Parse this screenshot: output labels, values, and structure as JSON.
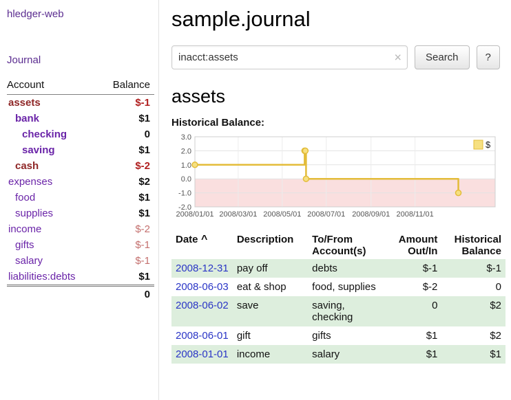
{
  "colors": {
    "link_purple": "#5b2d90",
    "account_purple": "#6a24a8",
    "maroon": "#8f2727",
    "negative": "#b01f1f",
    "negative_dim": "#c4706e",
    "date_blue": "#2a35c6",
    "row_green": "#ddeedd"
  },
  "app": {
    "brand": "hledger-web",
    "nav_journal": "Journal"
  },
  "sidebar": {
    "header": {
      "account": "Account",
      "balance": "Balance"
    },
    "accounts": [
      {
        "name": "assets",
        "indent": 0,
        "tone": "maroon",
        "bold": true,
        "balance": "$-1",
        "balance_tone": "num neg",
        "balance_bold": true
      },
      {
        "name": "bank",
        "indent": 1,
        "tone": "purple",
        "bold": true,
        "balance": "$1",
        "balance_tone": "num",
        "balance_bold": true
      },
      {
        "name": "checking",
        "indent": 2,
        "tone": "purple",
        "bold": true,
        "balance": "0",
        "balance_tone": "num",
        "balance_bold": true
      },
      {
        "name": "saving",
        "indent": 2,
        "tone": "purple",
        "bold": true,
        "balance": "$1",
        "balance_tone": "num",
        "balance_bold": true
      },
      {
        "name": "cash",
        "indent": 1,
        "tone": "maroon",
        "bold": true,
        "balance": "$-2",
        "balance_tone": "num neg",
        "balance_bold": true
      },
      {
        "name": "expenses",
        "indent": 0,
        "tone": "purple",
        "bold": false,
        "balance": "$2",
        "balance_tone": "num",
        "balance_bold": true
      },
      {
        "name": "food",
        "indent": 1,
        "tone": "purple",
        "bold": false,
        "balance": "$1",
        "balance_tone": "num",
        "balance_bold": true
      },
      {
        "name": "supplies",
        "indent": 1,
        "tone": "purple",
        "bold": false,
        "balance": "$1",
        "balance_tone": "num",
        "balance_bold": true
      },
      {
        "name": "income",
        "indent": 0,
        "tone": "purple",
        "bold": false,
        "balance": "$-2",
        "balance_tone": "num negdim",
        "balance_bold": false
      },
      {
        "name": "gifts",
        "indent": 1,
        "tone": "purple",
        "bold": false,
        "balance": "$-1",
        "balance_tone": "num negdim",
        "balance_bold": false
      },
      {
        "name": "salary",
        "indent": 1,
        "tone": "purple",
        "bold": false,
        "balance": "$-1",
        "balance_tone": "num negdim",
        "balance_bold": false
      },
      {
        "name": "liabilities:debts",
        "indent": 0,
        "tone": "purple",
        "bold": false,
        "balance": "$1",
        "balance_tone": "num",
        "balance_bold": true
      }
    ],
    "total": "0"
  },
  "main": {
    "title": "sample.journal",
    "search": {
      "value": "inacct:assets",
      "clear_icon": "×",
      "button": "Search",
      "help": "?"
    },
    "account_heading": "assets"
  },
  "chart_data": {
    "type": "line",
    "step": true,
    "title": "Historical Balance:",
    "ylim": [
      -2,
      3
    ],
    "yticks": [
      3,
      2,
      1,
      0,
      -1,
      -2
    ],
    "xlim": [
      "2008-01-01",
      "2009-02-20"
    ],
    "xticks": [
      "2008/01/01",
      "2008/03/01",
      "2008/05/01",
      "2008/07/01",
      "2008/09/01",
      "2008/11/01"
    ],
    "negative_region_color": "#fadfdf",
    "grid": true,
    "legend": {
      "label": "$",
      "position": "top-right"
    },
    "series": [
      {
        "name": "$",
        "color": "#e3bc39",
        "marker_fill": "#f6e081",
        "points": [
          [
            "2008-01-01",
            1
          ],
          [
            "2008-06-01",
            2
          ],
          [
            "2008-06-02",
            2
          ],
          [
            "2008-06-03",
            0
          ],
          [
            "2008-12-31",
            -1
          ]
        ]
      }
    ]
  },
  "register": {
    "sort_indicator": "^",
    "headers": [
      "Date",
      "Description",
      "To/From Account(s)",
      "Amount Out/In",
      "Historical Balance"
    ],
    "rows": [
      {
        "date": "2008-12-31",
        "description": "pay off",
        "accounts": "debts",
        "amount": "$-1",
        "amount_neg": true,
        "balance": "$-1",
        "balance_neg": true
      },
      {
        "date": "2008-06-03",
        "description": "eat & shop",
        "accounts": "food, supplies",
        "amount": "$-2",
        "amount_neg": true,
        "balance": "0",
        "balance_neg": false
      },
      {
        "date": "2008-06-02",
        "description": "save",
        "accounts": "saving, checking",
        "amount": "0",
        "amount_neg": false,
        "balance": "$2",
        "balance_neg": false
      },
      {
        "date": "2008-06-01",
        "description": "gift",
        "accounts": "gifts",
        "amount": "$1",
        "amount_neg": false,
        "balance": "$2",
        "balance_neg": false
      },
      {
        "date": "2008-01-01",
        "description": "income",
        "accounts": "salary",
        "amount": "$1",
        "amount_neg": false,
        "balance": "$1",
        "balance_neg": false
      }
    ]
  }
}
